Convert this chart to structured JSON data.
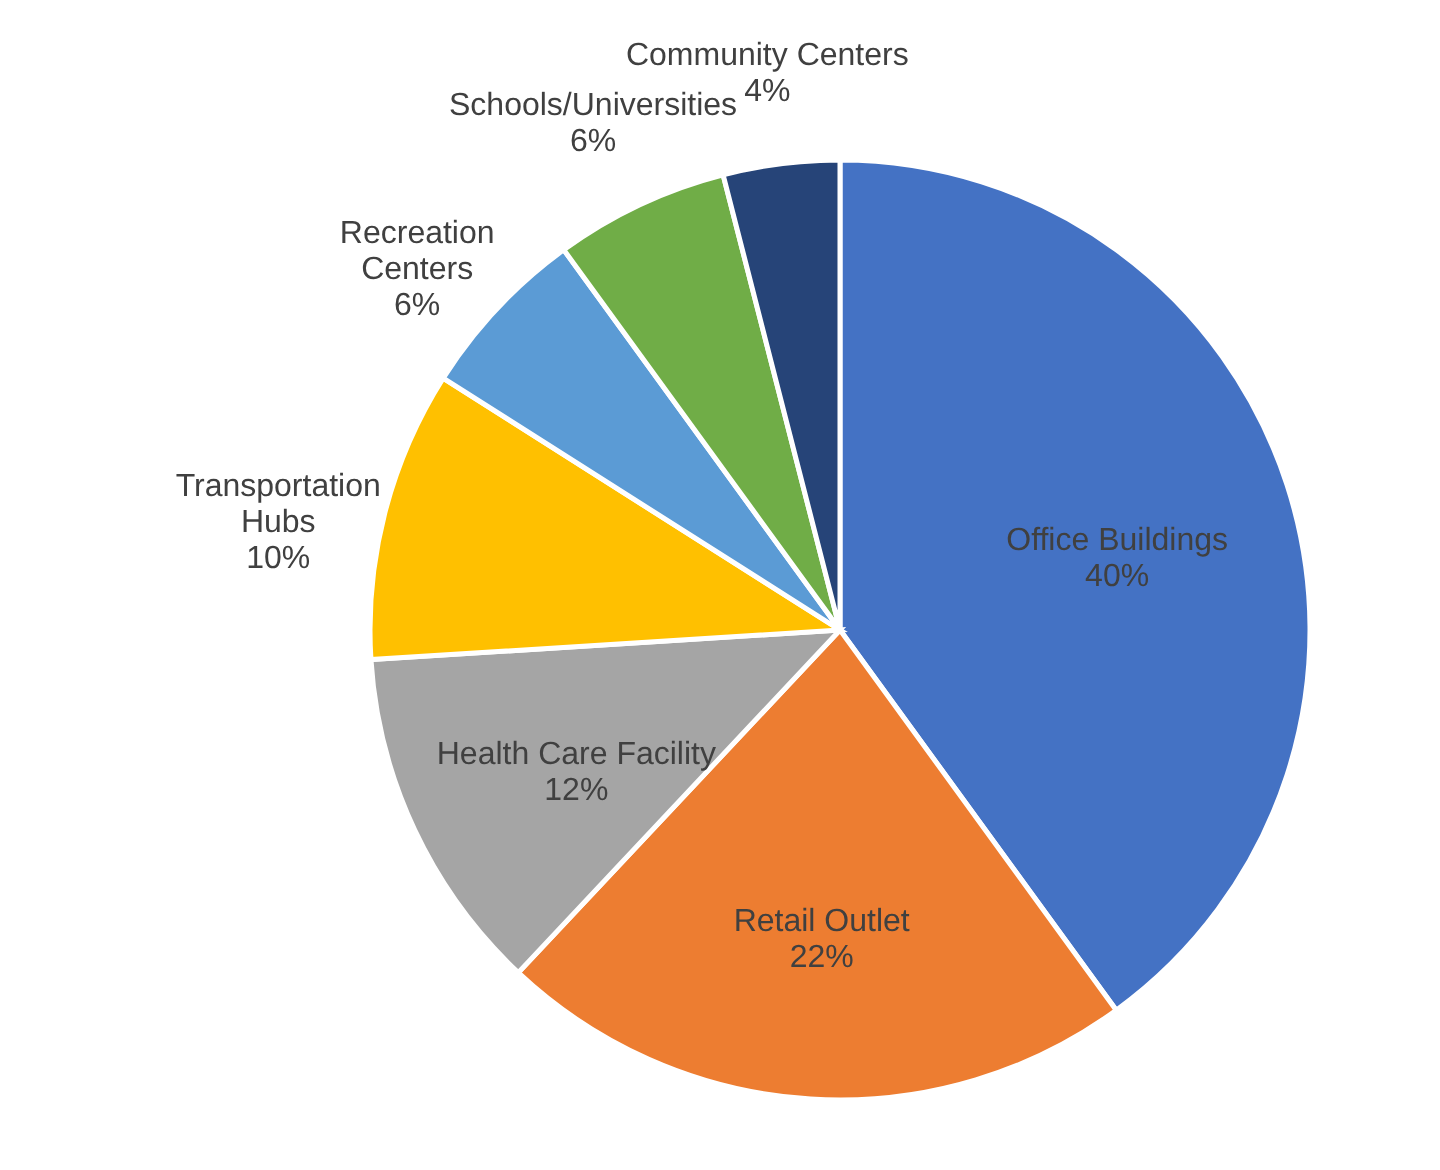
{
  "chart_data": {
    "type": "pie",
    "categories": [
      "Office Buildings",
      "Retail Outlet",
      "Health Care Facility",
      "Transportation Hubs",
      "Recreation Centers",
      "Schools/Universities",
      "Community Centers"
    ],
    "values": [
      40,
      22,
      12,
      10,
      6,
      6,
      4
    ],
    "colors": [
      "#4472c4",
      "#ed7d31",
      "#a5a5a5",
      "#ffc000",
      "#5b9bd5",
      "#70ad47",
      "#264478"
    ],
    "value_labels": [
      "40%",
      "22%",
      "12%",
      "10%",
      "6%",
      "6%",
      "4%"
    ]
  }
}
